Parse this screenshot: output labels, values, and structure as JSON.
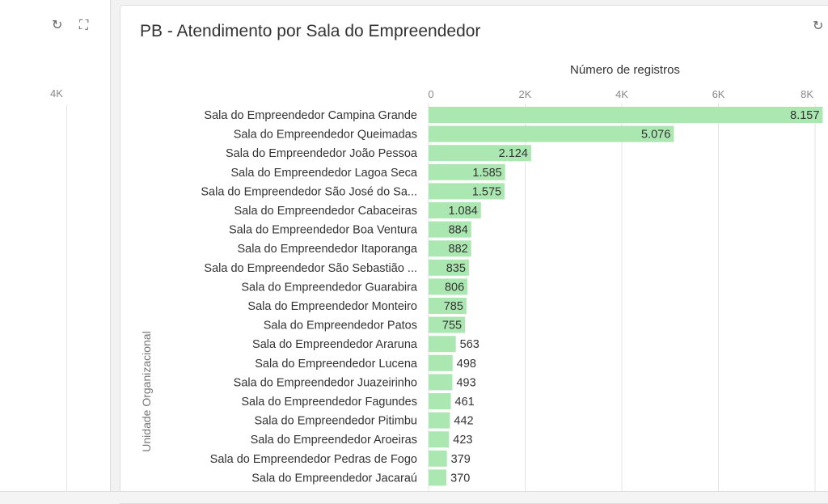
{
  "left_panel": {
    "refresh_icon": "↻",
    "expand_icon": "⛶",
    "tick_label": "4K"
  },
  "panel": {
    "title": "PB - Atendimento por Sala do Empreendedor",
    "refresh_icon": "↻"
  },
  "colors": {
    "bar": "#abe7b1",
    "grid": "#e4e4e4",
    "label": "#333333"
  },
  "chart_data": {
    "type": "bar",
    "orientation": "horizontal",
    "title": "PB - Atendimento por Sala do Empreendedor",
    "xlabel": "Número de registros",
    "ylabel": "Unidade Organizacional",
    "xlim": [
      0,
      8200
    ],
    "x_ticks": [
      {
        "value": 0,
        "label": "0"
      },
      {
        "value": 2000,
        "label": "2K"
      },
      {
        "value": 4000,
        "label": "4K"
      },
      {
        "value": 6000,
        "label": "6K"
      },
      {
        "value": 8000,
        "label": "8K"
      }
    ],
    "categories": [
      "Sala do Empreendedor Campina Grande",
      "Sala do Empreendedor Queimadas",
      "Sala do Empreendedor João Pessoa",
      "Sala do Empreendedor Lagoa Seca",
      "Sala do Empreendedor São José do Sa...",
      "Sala do Empreendedor Cabaceiras",
      "Sala do Empreendedor Boa Ventura",
      "Sala do Empreendedor Itaporanga",
      "Sala do Empreendedor São Sebastião ...",
      "Sala do Empreendedor Guarabira",
      "Sala do Empreendedor Monteiro",
      "Sala do Empreendedor Patos",
      "Sala do Empreendedor Araruna",
      "Sala do Empreendedor Lucena",
      "Sala do Empreendedor Juazeirinho",
      "Sala do Empreendedor Fagundes",
      "Sala do Empreendedor Pitimbu",
      "Sala do Empreendedor Aroeiras",
      "Sala do Empreendedor Pedras de Fogo",
      "Sala do Empreendedor Jacaraú"
    ],
    "values": [
      8157,
      5076,
      2124,
      1585,
      1575,
      1084,
      884,
      882,
      835,
      806,
      785,
      755,
      563,
      498,
      493,
      461,
      442,
      423,
      379,
      370
    ],
    "value_labels": [
      "8.157",
      "5.076",
      "2.124",
      "1.585",
      "1.575",
      "1.084",
      "884",
      "882",
      "835",
      "806",
      "785",
      "755",
      "563",
      "498",
      "493",
      "461",
      "442",
      "423",
      "379",
      "370"
    ],
    "grid": true
  }
}
